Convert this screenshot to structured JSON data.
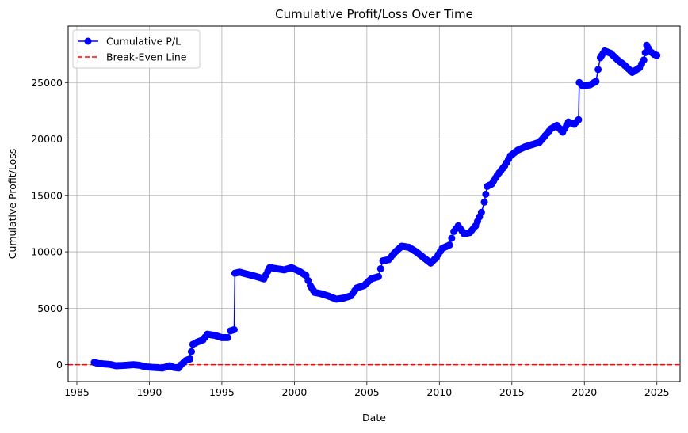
{
  "chart_data": {
    "type": "line",
    "title": "Cumulative Profit/Loss Over Time",
    "xlabel": "Date",
    "ylabel": "Cumulative Profit/Loss",
    "xlim": [
      1984.4,
      2026.6
    ],
    "ylim": [
      -1500,
      30000
    ],
    "x_ticks": [
      1985,
      1990,
      1995,
      2000,
      2005,
      2010,
      2015,
      2020,
      2025
    ],
    "y_ticks": [
      0,
      5000,
      10000,
      15000,
      20000,
      25000
    ],
    "grid": true,
    "legend_position": "top-left",
    "series": [
      {
        "name": "Cumulative P/L",
        "color": "#0000ff",
        "marker": "circle",
        "x": [
          1986.2,
          1986.5,
          1987.0,
          1987.3,
          1987.7,
          1988.4,
          1988.9,
          1989.3,
          1989.8,
          1990.9,
          1991.4,
          1991.7,
          1992.0,
          1992.2,
          1992.5,
          1992.8,
          1993.0,
          1993.3,
          1993.7,
          1994.0,
          1994.5,
          1995.0,
          1995.4,
          1995.6,
          1995.85,
          1995.9,
          1996.2,
          1996.8,
          1997.4,
          1997.9,
          1998.3,
          1998.8,
          1999.3,
          1999.8,
          2000.3,
          2000.8,
          2001.1,
          2001.4,
          2001.8,
          2002.3,
          2002.9,
          2003.4,
          2003.9,
          2004.3,
          2004.8,
          2005.3,
          2005.8,
          2006.1,
          2006.5,
          2006.9,
          2007.4,
          2007.9,
          2008.4,
          2008.9,
          2009.4,
          2009.8,
          2010.2,
          2010.7,
          2011.0,
          2011.3,
          2011.7,
          2012.1,
          2012.5,
          2012.9,
          2013.1,
          2013.3,
          2013.6,
          2014.0,
          2014.5,
          2014.9,
          2015.4,
          2015.9,
          2016.4,
          2016.9,
          2017.3,
          2017.7,
          2018.1,
          2018.5,
          2018.9,
          2019.3,
          2019.6,
          2019.65,
          2019.9,
          2020.4,
          2020.8,
          2021.1,
          2021.4,
          2021.8,
          2022.3,
          2022.8,
          2023.3,
          2023.8,
          2024.1,
          2024.3,
          2024.5,
          2024.8,
          2025.0
        ],
        "y": [
          200,
          100,
          50,
          20,
          -100,
          -50,
          0,
          -50,
          -200,
          -300,
          -100,
          -250,
          -300,
          0,
          350,
          500,
          1800,
          2000,
          2200,
          2700,
          2600,
          2400,
          2400,
          3000,
          3100,
          8100,
          8200,
          8000,
          7800,
          7600,
          8600,
          8500,
          8400,
          8600,
          8300,
          7900,
          7000,
          6400,
          6300,
          6100,
          5800,
          5900,
          6100,
          6800,
          7000,
          7600,
          7800,
          9200,
          9300,
          9900,
          10500,
          10400,
          10000,
          9500,
          9000,
          9500,
          10300,
          10600,
          11800,
          12300,
          11600,
          11700,
          12300,
          13500,
          14400,
          15800,
          16000,
          16800,
          17600,
          18500,
          19000,
          19300,
          19500,
          19700,
          20300,
          20900,
          21200,
          20600,
          21500,
          21300,
          21700,
          25000,
          24700,
          24800,
          25100,
          27200,
          27800,
          27600,
          27000,
          26500,
          25900,
          26300,
          27000,
          28300,
          27800,
          27500,
          27400
        ]
      },
      {
        "name": "Break-Even Line",
        "color": "#ff0000",
        "line_style": "dashed",
        "y_value": 0
      }
    ]
  }
}
